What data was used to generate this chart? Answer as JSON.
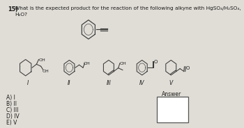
{
  "question_number": "15)",
  "question_text": "What is the expected product for the reaction of the following alkyne with HgSO₄/H₂SO₄,\nH₂O?",
  "choices": [
    "A) I",
    "B) II",
    "C) III",
    "D) IV",
    "E) V"
  ],
  "answer_label": "Answer",
  "background_color": "#e0ddd6",
  "text_color": "#1a1a1a",
  "line_color": "#3a3a3a",
  "font_size_question": 5.8,
  "font_size_choices": 5.5,
  "font_size_labels": 5.5,
  "font_size_atoms": 4.5
}
